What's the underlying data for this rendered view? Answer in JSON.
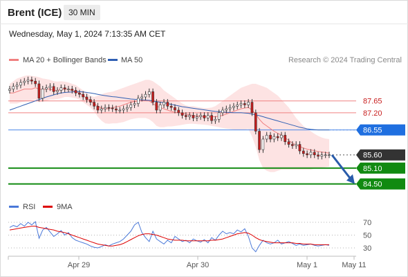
{
  "header": {
    "instrument": "Brent (ICE)",
    "timeframe": "30 MIN",
    "datetime": "Wednesday, May 1, 2024 7:13:35 AM CET"
  },
  "credit": "Research © 2024 Trading Central",
  "colors": {
    "bollinger": "#f08080",
    "bollinger_fill": "#fde3e3",
    "ma50": "#2f5fb3",
    "resistance": "#f08080",
    "pivot": "#4a86e8",
    "support": "#118a11",
    "last": "#333333",
    "arrow": "#2a5caa",
    "rsi": "#4a78d8",
    "rsi_ma": "#dd0000",
    "candle_up": "#ffffff",
    "candle_down": "#c81e1e"
  },
  "chart_data": [
    {
      "type": "candlestick",
      "legend": [
        {
          "label": "MA 20 + Bollinger Bands",
          "color": "#f08080"
        },
        {
          "label": "MA 50",
          "color": "#2f5fb3"
        }
      ],
      "ylim": [
        84.1,
        89.5
      ],
      "x_ticks": [
        "Apr 29",
        "Apr 30",
        "May 1",
        "May 11"
      ],
      "levels": [
        {
          "label": "87.65",
          "value": 87.65,
          "kind": "resistance"
        },
        {
          "label": "87.20",
          "value": 87.2,
          "kind": "resistance"
        },
        {
          "label": "86.55",
          "value": 86.55,
          "kind": "pivot"
        },
        {
          "label": "85.60",
          "value": 85.6,
          "kind": "last"
        },
        {
          "label": "85.10",
          "value": 85.1,
          "kind": "support"
        },
        {
          "label": "84.50",
          "value": 84.5,
          "kind": "support"
        }
      ],
      "close": [
        88.1,
        88.2,
        88.25,
        88.35,
        88.4,
        88.45,
        88.4,
        88.3,
        87.75,
        88.1,
        88.15,
        88.2,
        88.0,
        88.05,
        88.15,
        88.1,
        88.1,
        88.05,
        87.95,
        87.9,
        87.8,
        87.7,
        87.6,
        87.45,
        87.3,
        87.35,
        87.4,
        87.38,
        87.35,
        87.3,
        87.3,
        87.35,
        87.4,
        87.5,
        87.55,
        87.75,
        87.8,
        87.9,
        88.0,
        87.6,
        87.3,
        87.5,
        87.6,
        87.45,
        87.4,
        87.3,
        87.2,
        87.1,
        87.05,
        87.1,
        87.0,
        87.05,
        87.1,
        87.0,
        87.1,
        86.9,
        86.95,
        87.2,
        87.3,
        87.35,
        87.4,
        87.45,
        87.5,
        87.55,
        87.5,
        87.6,
        87.2,
        86.5,
        85.8,
        86.2,
        86.35,
        86.2,
        86.3,
        86.25,
        86.35,
        86.1,
        86.0,
        85.95,
        86.0,
        85.75,
        85.65,
        85.6,
        85.7,
        85.6,
        85.55,
        85.6,
        85.6,
        85.6
      ],
      "ma20": [
        87.95,
        87.95,
        88.0,
        88.05,
        88.1,
        88.1,
        88.1,
        88.15,
        88.1,
        88.08,
        88.1,
        88.1,
        88.05,
        88.05,
        88.08,
        88.1,
        88.08,
        88.05,
        88.0,
        87.95,
        87.85,
        87.75,
        87.65,
        87.55,
        87.45,
        87.38,
        87.35,
        87.35,
        87.4,
        87.42,
        87.45,
        87.5,
        87.55,
        87.6,
        87.62,
        87.65,
        87.66,
        87.68,
        87.65,
        87.55,
        87.45,
        87.4,
        87.35,
        87.3,
        87.25,
        87.22,
        87.2,
        87.17,
        87.15,
        87.12,
        87.1,
        87.08,
        87.07,
        87.05,
        87.05,
        87.05,
        87.05,
        87.07,
        87.1,
        87.15,
        87.2,
        87.25,
        87.3,
        87.35,
        87.38,
        87.4,
        87.3,
        87.15,
        86.95,
        86.8,
        86.7,
        86.6,
        86.5,
        86.42,
        86.35,
        86.25,
        86.15,
        86.05,
        85.98,
        85.92,
        85.86,
        85.82,
        85.79,
        85.76,
        85.73,
        85.71,
        85.69,
        85.67
      ],
      "bb_upper": [
        88.3,
        88.4,
        88.5,
        88.55,
        88.6,
        88.62,
        88.6,
        88.58,
        88.55,
        88.5,
        88.48,
        88.45,
        88.4,
        88.38,
        88.4,
        88.38,
        88.35,
        88.3,
        88.25,
        88.15,
        88.05,
        87.95,
        87.85,
        87.8,
        87.85,
        87.9,
        87.95,
        87.98,
        88.0,
        88.05,
        88.1,
        88.15,
        88.2,
        88.25,
        88.3,
        88.35,
        88.4,
        88.45,
        88.45,
        88.4,
        88.3,
        88.2,
        88.05,
        87.95,
        87.85,
        87.75,
        87.65,
        87.55,
        87.48,
        87.45,
        87.45,
        87.42,
        87.4,
        87.38,
        87.38,
        87.4,
        87.45,
        87.55,
        87.65,
        87.75,
        87.85,
        87.95,
        88.05,
        88.15,
        88.2,
        88.25,
        88.3,
        88.3,
        88.25,
        88.2,
        88.15,
        88.05,
        87.95,
        87.85,
        87.7,
        87.55,
        87.4,
        87.2,
        87.0,
        86.85,
        86.7,
        86.6,
        86.5,
        86.4,
        86.32,
        86.26,
        86.22,
        86.2
      ],
      "bb_lower": [
        87.55,
        87.55,
        87.55,
        87.6,
        87.62,
        87.65,
        87.68,
        87.7,
        87.6,
        87.62,
        87.65,
        87.7,
        87.7,
        87.72,
        87.75,
        87.8,
        87.8,
        87.78,
        87.75,
        87.7,
        87.6,
        87.5,
        87.4,
        87.25,
        87.05,
        86.9,
        86.8,
        86.78,
        86.8,
        86.8,
        86.82,
        86.85,
        86.9,
        86.95,
        86.98,
        87.0,
        87.0,
        87.0,
        86.95,
        86.85,
        86.7,
        86.65,
        86.65,
        86.68,
        86.68,
        86.7,
        86.72,
        86.74,
        86.77,
        86.78,
        86.78,
        86.77,
        86.76,
        86.75,
        86.73,
        86.7,
        86.68,
        86.65,
        86.62,
        86.6,
        86.58,
        86.56,
        86.55,
        86.55,
        86.56,
        86.58,
        86.3,
        85.9,
        85.4,
        85.1,
        85.0,
        84.95,
        84.95,
        85.0,
        85.05,
        85.05,
        85.05,
        85.05,
        85.05,
        85.05,
        85.05,
        85.05,
        85.05,
        85.08,
        85.1,
        85.12,
        85.14,
        85.16
      ],
      "ma50": [
        87.3,
        87.35,
        87.4,
        87.45,
        87.5,
        87.55,
        87.6,
        87.65,
        87.7,
        87.75,
        87.8,
        87.84,
        87.88,
        87.92,
        87.95,
        87.97,
        87.98,
        87.99,
        88.0,
        88.0,
        87.99,
        87.97,
        87.95,
        87.93,
        87.9,
        87.87,
        87.85,
        87.83,
        87.81,
        87.8,
        87.78,
        87.76,
        87.74,
        87.72,
        87.71,
        87.7,
        87.69,
        87.68,
        87.67,
        87.65,
        87.62,
        87.6,
        87.58,
        87.55,
        87.52,
        87.49,
        87.46,
        87.43,
        87.41,
        87.39,
        87.37,
        87.35,
        87.33,
        87.31,
        87.29,
        87.27,
        87.25,
        87.24,
        87.23,
        87.22,
        87.21,
        87.2,
        87.2,
        87.2,
        87.19,
        87.18,
        87.15,
        87.12,
        87.09,
        87.05,
        87.01,
        86.97,
        86.93,
        86.89,
        86.85,
        86.81,
        86.77,
        86.73,
        86.69,
        86.65,
        86.62,
        86.59,
        86.57,
        86.56,
        86.55,
        86.55,
        86.55,
        86.55
      ],
      "projection": {
        "from": 85.6,
        "to": 84.5
      }
    },
    {
      "type": "line",
      "legend": [
        {
          "label": "RSI",
          "color": "#4a78d8"
        },
        {
          "label": "9MA",
          "color": "#dd0000"
        }
      ],
      "ylim": [
        20,
        80
      ],
      "y_ticks": [
        70,
        50,
        30
      ],
      "series": [
        {
          "name": "RSI",
          "values": [
            62,
            65,
            63,
            68,
            64,
            70,
            66,
            71,
            45,
            58,
            62,
            55,
            48,
            52,
            57,
            50,
            54,
            46,
            42,
            40,
            38,
            36,
            33,
            31,
            30,
            32,
            35,
            33,
            36,
            38,
            40,
            44,
            50,
            56,
            66,
            70,
            54,
            46,
            40,
            56,
            44,
            40,
            36,
            42,
            38,
            48,
            44,
            40,
            42,
            38,
            44,
            41,
            39,
            43,
            38,
            46,
            42,
            50,
            56,
            52,
            54,
            52,
            58,
            55,
            60,
            48,
            30,
            24,
            34,
            42,
            38,
            36,
            38,
            42,
            36,
            38,
            40,
            37,
            34,
            36,
            34,
            35,
            36,
            34,
            33,
            34,
            35,
            34
          ]
        },
        {
          "name": "9MA",
          "values": [
            58,
            59,
            60,
            61,
            62,
            63,
            64,
            64,
            62,
            61,
            60,
            59,
            58,
            56,
            55,
            54,
            52,
            50,
            48,
            46,
            44,
            42,
            40,
            38,
            36,
            35,
            34,
            33,
            33,
            34,
            35,
            37,
            40,
            43,
            46,
            49,
            51,
            52,
            52,
            51,
            50,
            48,
            46,
            44,
            43,
            42,
            42,
            42,
            41,
            41,
            41,
            41,
            41,
            41,
            41,
            42,
            42,
            43,
            44,
            46,
            48,
            50,
            52,
            53,
            54,
            53,
            50,
            46,
            43,
            41,
            40,
            39,
            38,
            38,
            38,
            38,
            38,
            38,
            37,
            37,
            36,
            36,
            36,
            35,
            35,
            35,
            35,
            35
          ]
        }
      ]
    }
  ]
}
